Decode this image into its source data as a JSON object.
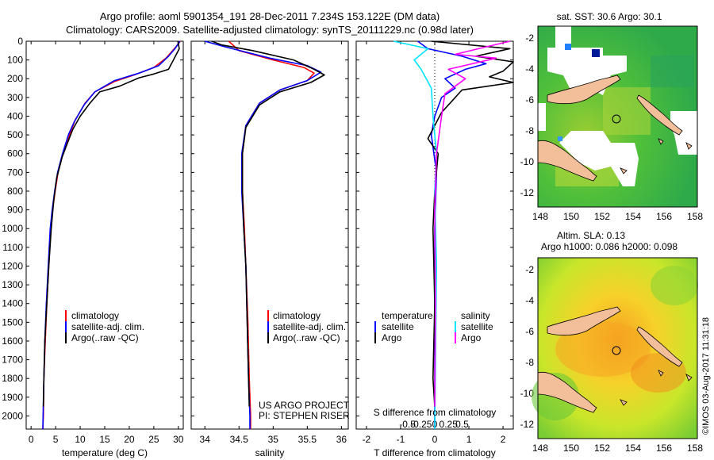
{
  "header": {
    "line1": "Argo profile: aoml 5901354_191 28-Dec-2011 7.234S 153.122E (DM data)",
    "line2": "Climatology: CARS2009. Satellite-adjusted climatology: synTS_20111229.nc (0.98d later)"
  },
  "colors": {
    "climatology": "#ff0000",
    "satellite": "#0000ff",
    "argo": "#000000",
    "salinity_satellite": "#00e5ff",
    "salinity_argo": "#ff00ff"
  },
  "chart_data": [
    {
      "type": "line",
      "id": "temperature",
      "xlabel": "temperature (deg C)",
      "ylabel": "",
      "xlim": [
        -1,
        31
      ],
      "ylim": [
        2070,
        0
      ],
      "xticks": [
        0,
        5,
        10,
        15,
        20,
        25,
        30
      ],
      "yticks": [
        0,
        100,
        200,
        300,
        400,
        500,
        600,
        700,
        800,
        900,
        1000,
        1100,
        1200,
        1300,
        1400,
        1500,
        1600,
        1700,
        1800,
        1900,
        2000
      ],
      "legend": [
        "climatology",
        "satellite-adj. clim.",
        "Argo(..raw -QC)"
      ],
      "series": [
        {
          "name": "climatology",
          "color": "#ff0000",
          "points": [
            [
              30.4,
              0
            ],
            [
              29.5,
              30
            ],
            [
              27.5,
              90
            ],
            [
              25,
              140
            ],
            [
              21,
              180
            ],
            [
              17,
              215
            ],
            [
              13,
              270
            ],
            [
              11,
              330
            ],
            [
              9,
              420
            ],
            [
              7.8,
              500
            ],
            [
              6.5,
              600
            ],
            [
              5.5,
              700
            ],
            [
              4.9,
              800
            ],
            [
              4.4,
              900
            ],
            [
              4.0,
              1000
            ],
            [
              3.6,
              1200
            ],
            [
              3.2,
              1400
            ],
            [
              2.9,
              1600
            ],
            [
              2.6,
              1800
            ],
            [
              2.5,
              2000
            ],
            [
              2.4,
              2070
            ]
          ]
        },
        {
          "name": "satellite-adj. clim.",
          "color": "#0000ff",
          "points": [
            [
              30.3,
              0
            ],
            [
              29.3,
              40
            ],
            [
              28,
              80
            ],
            [
              26,
              130
            ],
            [
              22,
              170
            ],
            [
              17,
              210
            ],
            [
              13,
              270
            ],
            [
              10.8,
              340
            ],
            [
              8.8,
              430
            ],
            [
              7.6,
              500
            ],
            [
              6.4,
              600
            ],
            [
              5.4,
              700
            ],
            [
              4.8,
              800
            ],
            [
              4.3,
              900
            ],
            [
              3.9,
              1000
            ],
            [
              3.5,
              1200
            ],
            [
              3.1,
              1400
            ],
            [
              2.8,
              1600
            ],
            [
              2.6,
              1800
            ],
            [
              2.45,
              2000
            ],
            [
              2.4,
              2070
            ]
          ]
        },
        {
          "name": "Argo(..raw -QC)",
          "color": "#000000",
          "points": [
            [
              29.9,
              0
            ],
            [
              30.2,
              40
            ],
            [
              29,
              100
            ],
            [
              28,
              150
            ],
            [
              25,
              175
            ],
            [
              22,
              195
            ],
            [
              18,
              240
            ],
            [
              14,
              270
            ],
            [
              12,
              330
            ],
            [
              10,
              400
            ],
            [
              8.5,
              470
            ],
            [
              7.3,
              550
            ],
            [
              6.3,
              620
            ],
            [
              5.2,
              730
            ],
            [
              4.6,
              850
            ],
            [
              4.1,
              1000
            ],
            [
              3.6,
              1200
            ],
            [
              3.2,
              1400
            ],
            [
              2.8,
              1600
            ],
            [
              2.6,
              1800
            ],
            [
              2.5,
              1950
            ]
          ]
        }
      ]
    },
    {
      "type": "line",
      "id": "salinity",
      "xlabel": "salinity",
      "ylabel": "",
      "xlim": [
        33.8,
        36.1
      ],
      "ylim": [
        2070,
        0
      ],
      "xticks": [
        34,
        34.5,
        35,
        35.5,
        36
      ],
      "legend": [
        "climatology",
        "satellite-adj. clim.",
        "Argo(..raw -QC)"
      ],
      "annotation": [
        "US ARGO PROJECT",
        "PI: STEPHEN RISER"
      ],
      "series": [
        {
          "name": "climatology",
          "color": "#ff0000",
          "points": [
            [
              34.35,
              0
            ],
            [
              34.5,
              50
            ],
            [
              35.0,
              100
            ],
            [
              35.45,
              140
            ],
            [
              35.6,
              170
            ],
            [
              35.5,
              210
            ],
            [
              35.1,
              260
            ],
            [
              34.8,
              330
            ],
            [
              34.6,
              450
            ],
            [
              34.55,
              600
            ],
            [
              34.55,
              800
            ],
            [
              34.58,
              1000
            ],
            [
              34.6,
              1200
            ],
            [
              34.63,
              1500
            ],
            [
              34.65,
              1800
            ],
            [
              34.67,
              2000
            ],
            [
              34.67,
              2070
            ]
          ]
        },
        {
          "name": "satellite-adj. clim.",
          "color": "#0000ff",
          "points": [
            [
              34.0,
              0
            ],
            [
              34.3,
              30
            ],
            [
              34.95,
              90
            ],
            [
              35.5,
              130
            ],
            [
              35.7,
              165
            ],
            [
              35.5,
              210
            ],
            [
              35.1,
              260
            ],
            [
              34.8,
              330
            ],
            [
              34.6,
              450
            ],
            [
              34.54,
              600
            ],
            [
              34.54,
              800
            ],
            [
              34.57,
              1000
            ],
            [
              34.6,
              1200
            ],
            [
              34.62,
              1500
            ],
            [
              34.64,
              1800
            ],
            [
              34.66,
              2000
            ],
            [
              34.66,
              2070
            ]
          ]
        },
        {
          "name": "Argo(..raw -QC)",
          "color": "#000000",
          "points": [
            [
              34.1,
              0
            ],
            [
              34.25,
              20
            ],
            [
              34.7,
              50
            ],
            [
              35.3,
              100
            ],
            [
              35.6,
              150
            ],
            [
              35.75,
              180
            ],
            [
              35.55,
              220
            ],
            [
              35.1,
              270
            ],
            [
              34.8,
              340
            ],
            [
              34.6,
              460
            ],
            [
              34.55,
              600
            ],
            [
              34.55,
              800
            ],
            [
              34.57,
              1000
            ],
            [
              34.6,
              1200
            ],
            [
              34.62,
              1500
            ],
            [
              34.64,
              1800
            ],
            [
              34.65,
              1950
            ]
          ]
        }
      ]
    },
    {
      "type": "line",
      "id": "difference",
      "xlabel": "T difference from climatology",
      "xlabel_top": "S difference from climatology",
      "xlim": [
        -2.3,
        2.3
      ],
      "ylim": [
        2070,
        0
      ],
      "xticks": [
        -2,
        -1,
        0,
        1,
        2
      ],
      "xticks_s": [
        "-0.5",
        "-0.25",
        "0",
        "0.25",
        "0.5"
      ],
      "legend_temperature": {
        "title": "temperature",
        "items": [
          "satellite",
          "Argo"
        ]
      },
      "legend_salinity": {
        "title": "salinity",
        "items": [
          "satellite",
          "Argo"
        ]
      },
      "series": [
        {
          "name": "temperature satellite",
          "color": "#0000ff",
          "points": [
            [
              -0.5,
              0
            ],
            [
              -0.2,
              40
            ],
            [
              0.8,
              80
            ],
            [
              1.5,
              120
            ],
            [
              0.9,
              150
            ],
            [
              0.3,
              200
            ],
            [
              0.6,
              250
            ],
            [
              0.2,
              300
            ],
            [
              0.0,
              400
            ],
            [
              -0.1,
              500
            ],
            [
              0.05,
              700
            ],
            [
              0.0,
              1000
            ],
            [
              0.0,
              2070
            ]
          ]
        },
        {
          "name": "temperature Argo",
          "color": "#000000",
          "points": [
            [
              -0.1,
              0
            ],
            [
              2.2,
              40
            ],
            [
              1.2,
              80
            ],
            [
              2.3,
              110
            ],
            [
              2.0,
              160
            ],
            [
              1.6,
              190
            ],
            [
              2.3,
              220
            ],
            [
              0.8,
              260
            ],
            [
              0.6,
              300
            ],
            [
              0.2,
              380
            ],
            [
              0.0,
              450
            ],
            [
              -0.2,
              520
            ],
            [
              0.1,
              600
            ],
            [
              0.0,
              800
            ],
            [
              -0.05,
              1000
            ],
            [
              0.0,
              1400
            ],
            [
              -0.05,
              1800
            ],
            [
              0.0,
              1950
            ]
          ]
        },
        {
          "name": "salinity satellite",
          "color": "#00e5ff",
          "points": [
            [
              -1.2,
              0
            ],
            [
              -0.2,
              40
            ],
            [
              -0.6,
              100
            ],
            [
              -0.4,
              150
            ],
            [
              -0.1,
              250
            ],
            [
              -0.05,
              400
            ],
            [
              0.05,
              600
            ],
            [
              0.0,
              800
            ],
            [
              0.05,
              1200
            ],
            [
              0.0,
              2070
            ]
          ]
        },
        {
          "name": "salinity Argo",
          "color": "#ff00ff",
          "points": [
            [
              2.2,
              0
            ],
            [
              1.5,
              30
            ],
            [
              0.6,
              70
            ],
            [
              1.8,
              90
            ],
            [
              0.4,
              150
            ],
            [
              0.9,
              200
            ],
            [
              0.3,
              280
            ],
            [
              0.2,
              400
            ],
            [
              0.05,
              600
            ],
            [
              0.0,
              900
            ],
            [
              0.02,
              1400
            ],
            [
              0.0,
              1950
            ]
          ]
        }
      ]
    }
  ],
  "maps": {
    "top": {
      "title": "sat. SST: 30.6  Argo: 30.1",
      "xticks": [
        "148",
        "150",
        "152",
        "154",
        "156",
        "158"
      ],
      "yticks": [
        "-2",
        "-4",
        "-6",
        "-8",
        "-10",
        "-12"
      ]
    },
    "bottom": {
      "title1": "Altim. SLA: 0.13",
      "title2": "Argo h1000: 0.086 h2000: 0.098",
      "xticks": [
        "148",
        "150",
        "152",
        "154",
        "156",
        "158"
      ],
      "yticks": [
        "-2",
        "-4",
        "-6",
        "-8",
        "-10",
        "-12"
      ]
    },
    "stamp": "©IMOS 03-Aug-2017 11:31:18"
  }
}
